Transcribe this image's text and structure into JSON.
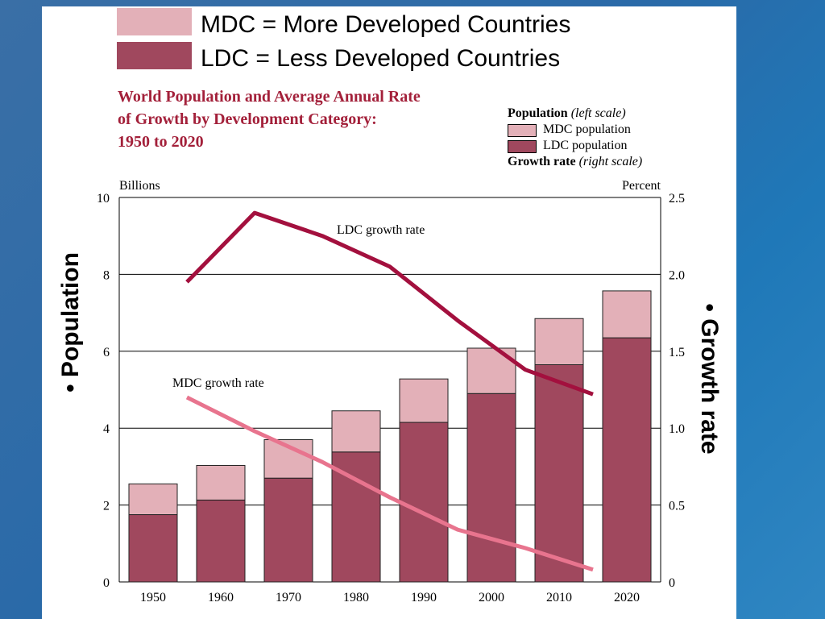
{
  "slide": {
    "legend_top": [
      {
        "label": "MDC = More Developed Countries",
        "color": "#e3b0b8"
      },
      {
        "label": "LDC = Less Developed Countries",
        "color": "#a0485e"
      }
    ],
    "left_side_label": "Population",
    "right_side_label": "Growth rate",
    "bullet": "•"
  },
  "chart_data": {
    "type": "bar",
    "title_lines": [
      "World Population and Average Annual Rate",
      "of Growth by Development Category:",
      "1950 to 2020"
    ],
    "legend": {
      "population_header": "Population",
      "population_scale": "(left scale)",
      "items": [
        {
          "label": "MDC population",
          "color": "#e3b0b8"
        },
        {
          "label": "LDC population",
          "color": "#a0485e"
        }
      ],
      "growth_header": "Growth rate",
      "growth_scale": "(right scale)"
    },
    "left_axis": {
      "label": "Billions",
      "range": [
        0,
        10
      ],
      "ticks": [
        "0",
        "2",
        "4",
        "6",
        "8",
        "10"
      ]
    },
    "right_axis": {
      "label": "Percent",
      "range": [
        0,
        2.5
      ],
      "ticks": [
        "0",
        "0.5",
        "1.0",
        "1.5",
        "2.0",
        "2.5"
      ]
    },
    "categories": [
      "1950",
      "1960",
      "1970",
      "1980",
      "1990",
      "2000",
      "2010",
      "2020"
    ],
    "stacked_series": [
      {
        "name": "LDC population",
        "color": "#a0485e",
        "values": [
          1.75,
          2.13,
          2.7,
          3.38,
          4.15,
          4.9,
          5.65,
          6.35
        ]
      },
      {
        "name": "MDC population",
        "color": "#e3b0b8",
        "values": [
          0.8,
          0.9,
          1.0,
          1.07,
          1.13,
          1.18,
          1.2,
          1.22
        ]
      }
    ],
    "growth_series": [
      {
        "name": "LDC growth rate",
        "color": "#a3103e",
        "x": [
          1955,
          1965,
          1975,
          1985,
          1995,
          2005,
          2015
        ],
        "values": [
          1.95,
          2.4,
          2.25,
          2.05,
          1.7,
          1.38,
          1.22
        ]
      },
      {
        "name": "MDC growth rate",
        "color": "#e8748e",
        "x": [
          1955,
          1965,
          1975,
          1985,
          1995,
          2005,
          2015
        ],
        "values": [
          1.2,
          0.98,
          0.78,
          0.55,
          0.34,
          0.22,
          0.08
        ]
      }
    ],
    "grid": true
  }
}
